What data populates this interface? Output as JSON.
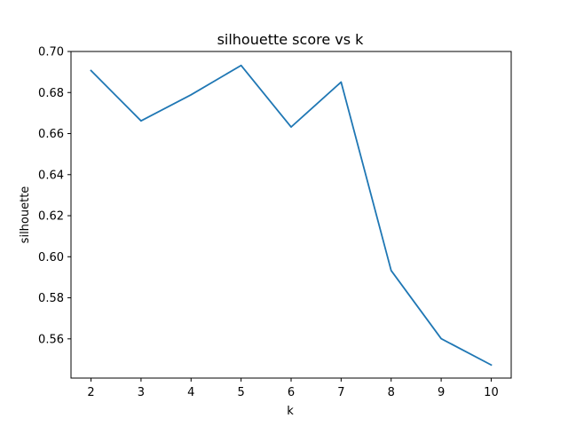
{
  "chart_data": {
    "type": "line",
    "title": "silhouette score vs k",
    "xlabel": "k",
    "ylabel": "silhouette",
    "x": [
      2,
      3,
      4,
      5,
      6,
      7,
      8,
      9,
      10
    ],
    "series": [
      {
        "values": [
          0.6907,
          0.6662,
          0.6789,
          0.6932,
          0.6632,
          0.6851,
          0.5933,
          0.5601,
          0.5473
        ],
        "color": "#1f77b4"
      }
    ],
    "xlim": [
      1.6,
      10.4
    ],
    "ylim": [
      0.5409,
      0.7
    ],
    "xticks": [
      "2",
      "3",
      "4",
      "5",
      "6",
      "7",
      "8",
      "9",
      "10"
    ],
    "yticks": [
      "0.56",
      "0.58",
      "0.60",
      "0.62",
      "0.64",
      "0.66",
      "0.68",
      "0.70"
    ],
    "grid": false,
    "legend": "none"
  }
}
